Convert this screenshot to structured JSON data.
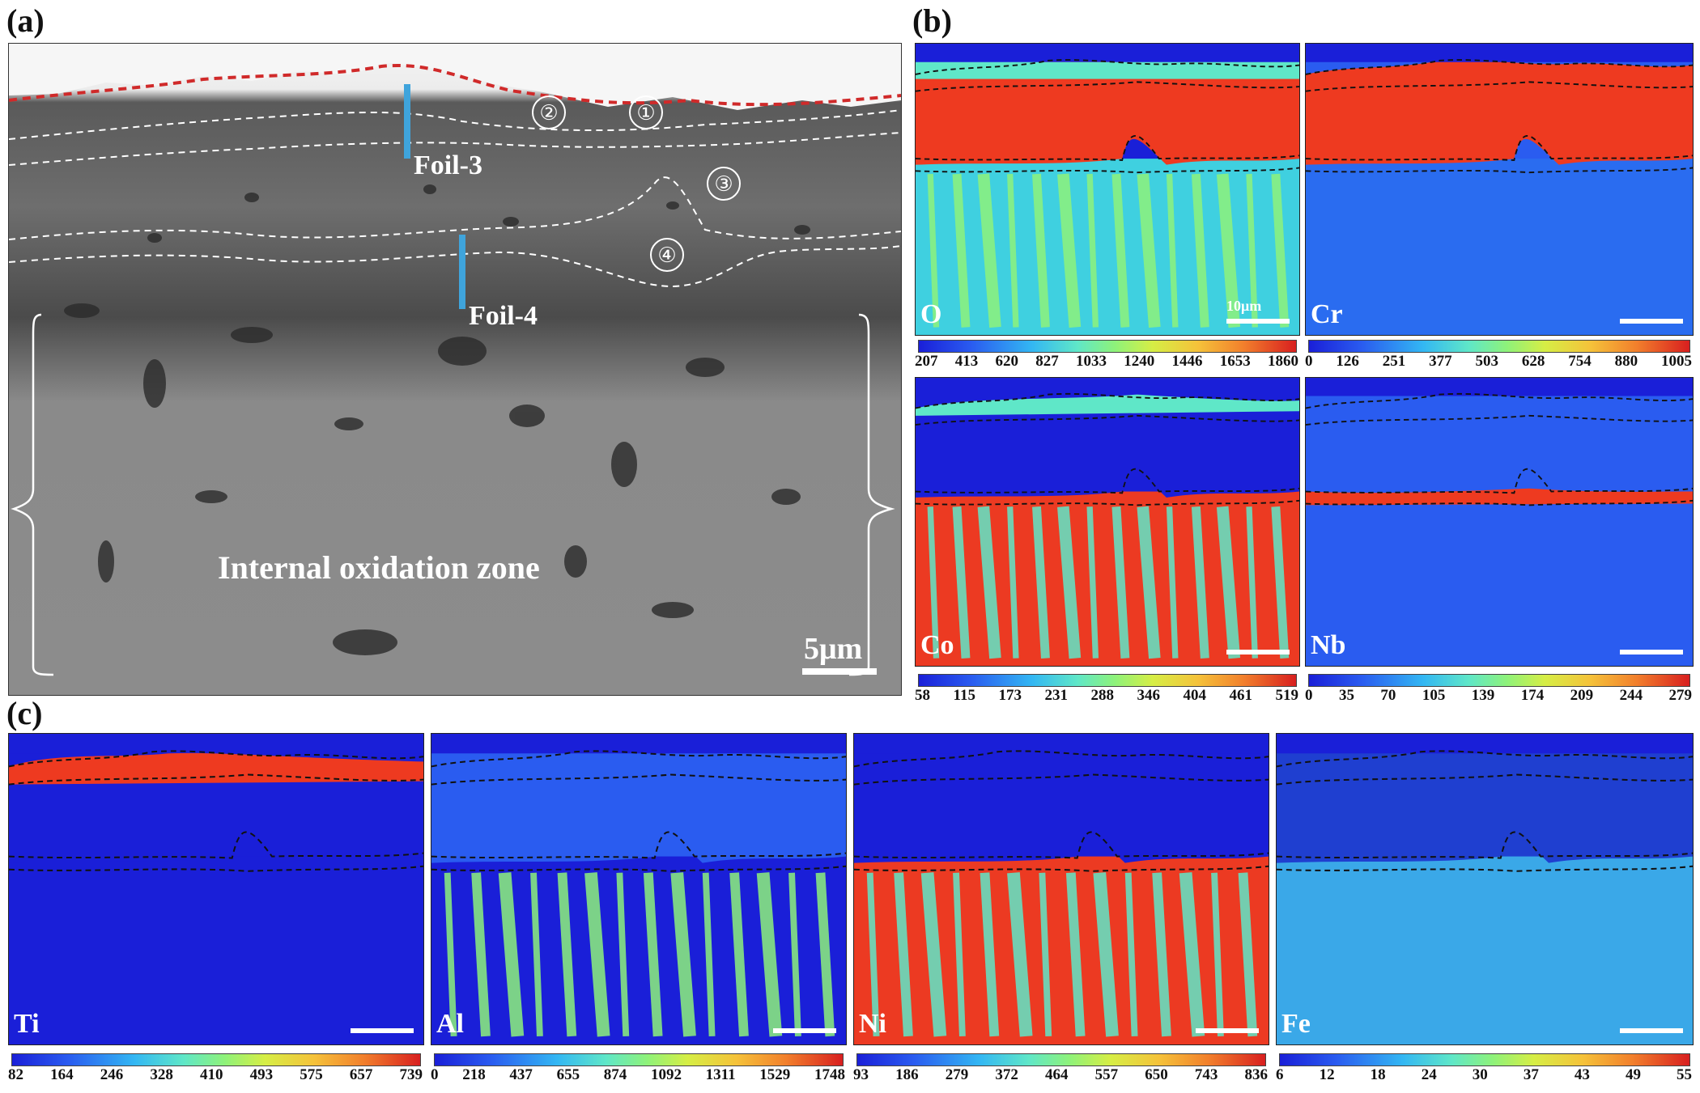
{
  "panels": {
    "a": {
      "letter": "(a)"
    },
    "b": {
      "letter": "(b)"
    },
    "c": {
      "letter": "(c)"
    }
  },
  "sem": {
    "foil3": "Foil-3",
    "foil4": "Foil-4",
    "zone_label": "Internal oxidation zone",
    "scale_label": "5μm",
    "circled": [
      "①",
      "②",
      "③",
      "④"
    ]
  },
  "maps": [
    {
      "element": "O",
      "scale_label": "10μm",
      "ticks": [
        "207",
        "413",
        "620",
        "827",
        "1033",
        "1240",
        "1446",
        "1653",
        "1860"
      ]
    },
    {
      "element": "Cr",
      "scale_label": "",
      "ticks": [
        "0",
        "126",
        "251",
        "377",
        "503",
        "628",
        "754",
        "880",
        "1005"
      ]
    },
    {
      "element": "Co",
      "scale_label": "",
      "ticks": [
        "58",
        "115",
        "173",
        "231",
        "288",
        "346",
        "404",
        "461",
        "519"
      ]
    },
    {
      "element": "Nb",
      "scale_label": "",
      "ticks": [
        "0",
        "35",
        "70",
        "105",
        "139",
        "174",
        "209",
        "244",
        "279"
      ]
    },
    {
      "element": "Ti",
      "scale_label": "",
      "ticks": [
        "82",
        "164",
        "246",
        "328",
        "410",
        "493",
        "575",
        "657",
        "739"
      ]
    },
    {
      "element": "Al",
      "scale_label": "",
      "ticks": [
        "0",
        "218",
        "437",
        "655",
        "874",
        "1092",
        "1311",
        "1529",
        "1748"
      ]
    },
    {
      "element": "Ni",
      "scale_label": "",
      "ticks": [
        "93",
        "186",
        "279",
        "372",
        "464",
        "557",
        "650",
        "743",
        "836"
      ]
    },
    {
      "element": "Fe",
      "scale_label": "",
      "ticks": [
        "6",
        "12",
        "18",
        "24",
        "30",
        "37",
        "43",
        "49",
        "55"
      ]
    }
  ],
  "colors": {
    "map_low": "#1a1fd8",
    "map_high": "#d81f1f",
    "foil_marker": "#3fa4dc",
    "oxide_boundary": "#d02a2a"
  }
}
